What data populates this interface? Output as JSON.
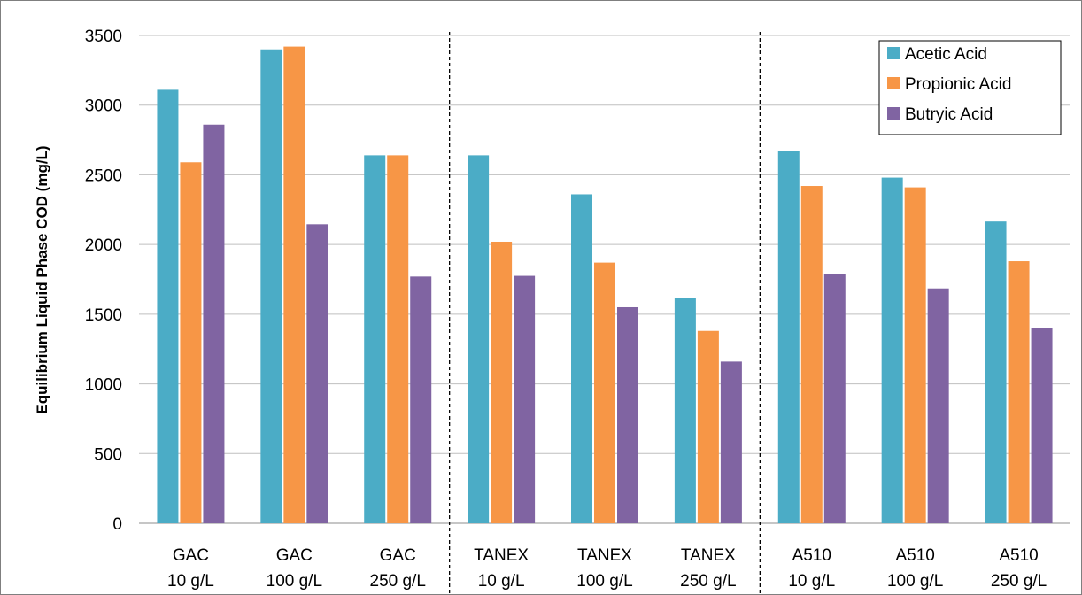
{
  "chart_data": {
    "type": "bar",
    "title": "",
    "xlabel": "",
    "ylabel": "Equilibrium Liquid Phase COD (mg/L)",
    "ylim": [
      0,
      3500
    ],
    "yticks": [
      0,
      500,
      1000,
      1500,
      2000,
      2500,
      3000,
      3500
    ],
    "grid": true,
    "legend_position": "top-right",
    "categories": [
      [
        "GAC",
        "10 g/L"
      ],
      [
        "GAC",
        "100 g/L"
      ],
      [
        "GAC",
        "250 g/L"
      ],
      [
        "TANEX",
        "10 g/L"
      ],
      [
        "TANEX",
        "100 g/L"
      ],
      [
        "TANEX",
        "250 g/L"
      ],
      [
        "A510",
        "10 g/L"
      ],
      [
        "A510",
        "100 g/L"
      ],
      [
        "A510",
        "250 g/L"
      ]
    ],
    "series": [
      {
        "name": "Acetic Acid",
        "color": "#4BACC6",
        "values": [
          3110,
          3400,
          2640,
          2640,
          2360,
          1615,
          2670,
          2480,
          2165
        ]
      },
      {
        "name": "Propionic Acid",
        "color": "#F79646",
        "values": [
          2590,
          3420,
          2640,
          2020,
          1870,
          1380,
          2420,
          2410,
          1880
        ]
      },
      {
        "name": "Butryic Acid",
        "color": "#8064A2",
        "values": [
          2860,
          2145,
          1770,
          1775,
          1550,
          1160,
          1785,
          1685,
          1400
        ]
      }
    ],
    "group_separators": "dashed vertical lines between GAC/TANEX and TANEX/A510 groups"
  }
}
